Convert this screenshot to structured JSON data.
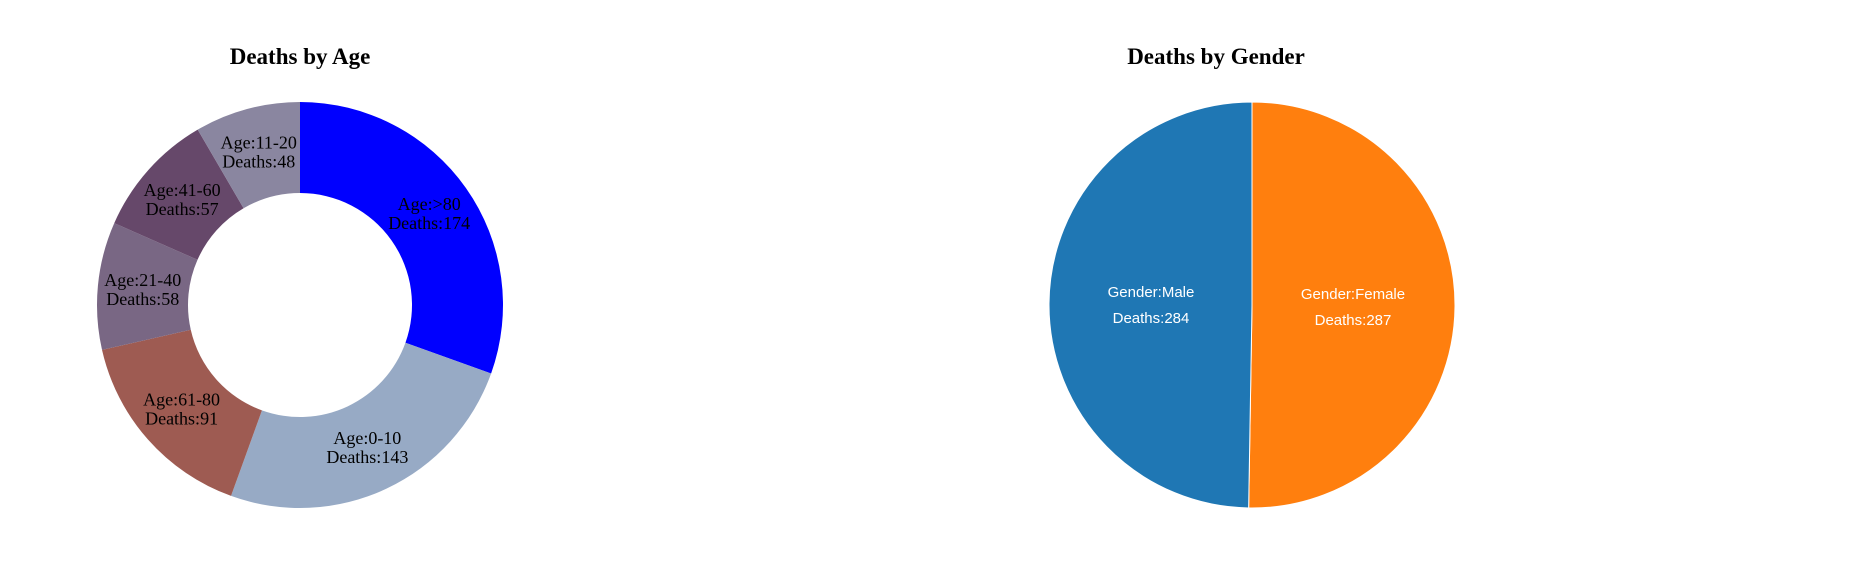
{
  "chart_data": [
    {
      "type": "pie",
      "variant": "donut",
      "title": "Deaths by Age",
      "slices": [
        {
          "label": "Age:>80",
          "deaths_label": "Deaths:174",
          "value": 174,
          "color": "#0000ff"
        },
        {
          "label": "Age:0-10",
          "deaths_label": "Deaths:143",
          "value": 143,
          "color": "#97aac5"
        },
        {
          "label": "Age:61-80",
          "deaths_label": "Deaths:91",
          "value": 91,
          "color": "#9e5b52"
        },
        {
          "label": "Age:21-40",
          "deaths_label": "Deaths:58",
          "value": 58,
          "color": "#796784"
        },
        {
          "label": "Age:41-60",
          "deaths_label": "Deaths:57",
          "value": 57,
          "color": "#66486a"
        },
        {
          "label": "Age:11-20",
          "deaths_label": "Deaths:48",
          "value": 48,
          "color": "#8a86a0"
        }
      ]
    },
    {
      "type": "pie",
      "title": "Deaths by Gender",
      "slices": [
        {
          "label": "Gender:Female",
          "deaths_label": "Deaths:287",
          "value": 287,
          "color": "#ff7f0e"
        },
        {
          "label": "Gender:Male",
          "deaths_label": "Deaths:284",
          "value": 284,
          "color": "#1f77b4"
        }
      ]
    }
  ]
}
